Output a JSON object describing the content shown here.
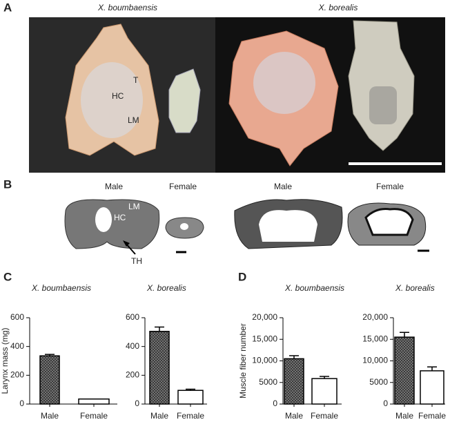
{
  "figure": {
    "panel_labels": [
      "A",
      "B",
      "C",
      "D"
    ],
    "photo_species": [
      "X. boumbaensis",
      "X. borealis"
    ],
    "section_labels": [
      "Male",
      "Female",
      "Male",
      "Female"
    ],
    "anatomy_labels": [
      "T",
      "HC",
      "LM",
      "LM",
      "HC",
      "TH"
    ]
  },
  "chart_data": [
    {
      "type": "bar",
      "title": "X. boumbaensis",
      "ylabel": "Larynx mass (mg)",
      "categories": [
        "Male",
        "Female"
      ],
      "values": [
        335,
        35
      ],
      "errors": [
        10,
        0
      ],
      "colors": [
        "#555555",
        "#ffffff"
      ],
      "hatched": [
        true,
        false
      ],
      "ylim": [
        0,
        600
      ],
      "yticks": [
        0,
        200,
        400,
        600
      ]
    },
    {
      "type": "bar",
      "title": "X. borealis",
      "categories": [
        "Male",
        "Female"
      ],
      "values": [
        505,
        95
      ],
      "errors": [
        30,
        8
      ],
      "colors": [
        "#555555",
        "#ffffff"
      ],
      "hatched": [
        true,
        false
      ],
      "ylim": [
        0,
        600
      ],
      "yticks": [
        0,
        200,
        400,
        600
      ]
    },
    {
      "type": "bar",
      "title": "X. boumbaensis",
      "ylabel": "Muscle fiber number",
      "categories": [
        "Male",
        "Female"
      ],
      "values": [
        10500,
        5900
      ],
      "errors": [
        700,
        500
      ],
      "colors": [
        "#555555",
        "#ffffff"
      ],
      "hatched": [
        true,
        false
      ],
      "ylim": [
        0,
        20000
      ],
      "yticks": [
        0,
        5000,
        {
          "value": 10000,
          "label": "10,000"
        },
        {
          "value": 15000,
          "label": "15,000"
        },
        {
          "value": 20000,
          "label": "20,000"
        }
      ]
    },
    {
      "type": "bar",
      "title": "X. borealis",
      "categories": [
        "Male",
        "Female"
      ],
      "values": [
        15500,
        7700
      ],
      "errors": [
        1100,
        900
      ],
      "colors": [
        "#555555",
        "#ffffff"
      ],
      "hatched": [
        true,
        false
      ],
      "ylim": [
        0,
        20000
      ],
      "yticks": [
        0,
        5000,
        {
          "value": 10000,
          "label": "10,000"
        },
        {
          "value": 15000,
          "label": "15,000"
        },
        {
          "value": 20000,
          "label": "20,000"
        }
      ]
    }
  ]
}
